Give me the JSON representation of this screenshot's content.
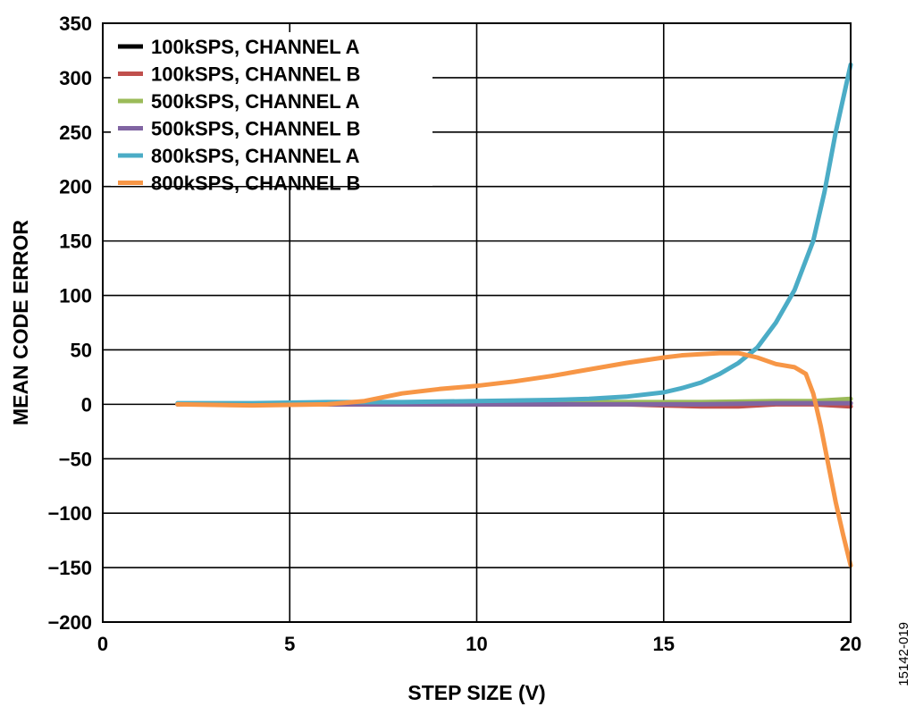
{
  "figure_id": "15142-019",
  "chart_data": {
    "type": "line",
    "title": "",
    "xlabel": "STEP SIZE (V)",
    "ylabel": "MEAN CODE ERROR",
    "xlim": [
      0,
      20
    ],
    "ylim": [
      -200,
      350
    ],
    "x_ticks": [
      0,
      5,
      10,
      15,
      20
    ],
    "x_tick_labels": [
      "0",
      "5",
      "10",
      "15",
      "20"
    ],
    "y_ticks": [
      350,
      300,
      250,
      200,
      150,
      100,
      50,
      0,
      -50,
      -100,
      -150,
      -200
    ],
    "y_tick_labels": [
      "350",
      "300",
      "250",
      "200",
      "150",
      "100",
      "50",
      "0",
      "−50",
      "−100",
      "−150",
      "−200"
    ],
    "grid": true,
    "legend_position": "top-left",
    "series": [
      {
        "name": "100kSPS, CHANNEL A",
        "color": "#000000",
        "points": [
          [
            2,
            0
          ],
          [
            4,
            0
          ],
          [
            6,
            0
          ],
          [
            8,
            0
          ],
          [
            10,
            0
          ],
          [
            12,
            0
          ],
          [
            14,
            1
          ],
          [
            16,
            1
          ],
          [
            18,
            1
          ],
          [
            20,
            1
          ]
        ]
      },
      {
        "name": "100kSPS, CHANNEL B",
        "color": "#c0504d",
        "points": [
          [
            2,
            0
          ],
          [
            4,
            0
          ],
          [
            6,
            0
          ],
          [
            8,
            0
          ],
          [
            10,
            0
          ],
          [
            12,
            0
          ],
          [
            14,
            0
          ],
          [
            15,
            -1
          ],
          [
            16,
            -2
          ],
          [
            17,
            -2
          ],
          [
            18,
            0
          ],
          [
            19,
            0
          ],
          [
            20,
            -2
          ]
        ]
      },
      {
        "name": "500kSPS, CHANNEL A",
        "color": "#9bbb59",
        "points": [
          [
            2,
            0
          ],
          [
            4,
            0
          ],
          [
            6,
            1
          ],
          [
            8,
            1
          ],
          [
            10,
            1
          ],
          [
            12,
            2
          ],
          [
            14,
            2
          ],
          [
            16,
            2
          ],
          [
            18,
            3
          ],
          [
            19,
            3
          ],
          [
            20,
            5
          ]
        ]
      },
      {
        "name": "500kSPS, CHANNEL B",
        "color": "#8064a2",
        "points": [
          [
            2,
            0
          ],
          [
            4,
            0
          ],
          [
            6,
            0
          ],
          [
            8,
            0
          ],
          [
            10,
            0
          ],
          [
            12,
            0
          ],
          [
            14,
            0
          ],
          [
            16,
            0
          ],
          [
            18,
            1
          ],
          [
            20,
            1
          ]
        ]
      },
      {
        "name": "800kSPS, CHANNEL A",
        "color": "#4bacc6",
        "points": [
          [
            2,
            1
          ],
          [
            4,
            1
          ],
          [
            6,
            2
          ],
          [
            8,
            2
          ],
          [
            10,
            3
          ],
          [
            12,
            4
          ],
          [
            13,
            5
          ],
          [
            14,
            7
          ],
          [
            15,
            11
          ],
          [
            15.5,
            15
          ],
          [
            16,
            20
          ],
          [
            16.5,
            28
          ],
          [
            17,
            38
          ],
          [
            17.5,
            52
          ],
          [
            18,
            75
          ],
          [
            18.5,
            105
          ],
          [
            19,
            150
          ],
          [
            19.3,
            195
          ],
          [
            19.6,
            250
          ],
          [
            20,
            312
          ]
        ]
      },
      {
        "name": "800kSPS, CHANNEL B",
        "color": "#f79646",
        "points": [
          [
            2,
            0
          ],
          [
            4,
            -1
          ],
          [
            6,
            0
          ],
          [
            7,
            3
          ],
          [
            8,
            10
          ],
          [
            9,
            14
          ],
          [
            10,
            17
          ],
          [
            11,
            21
          ],
          [
            12,
            26
          ],
          [
            13,
            32
          ],
          [
            14,
            38
          ],
          [
            15,
            43
          ],
          [
            15.5,
            45
          ],
          [
            16,
            46
          ],
          [
            16.5,
            47
          ],
          [
            17,
            47
          ],
          [
            17.5,
            43
          ],
          [
            18,
            37
          ],
          [
            18.5,
            34
          ],
          [
            18.8,
            28
          ],
          [
            19,
            10
          ],
          [
            19.2,
            -20
          ],
          [
            19.4,
            -55
          ],
          [
            19.6,
            -90
          ],
          [
            19.8,
            -120
          ],
          [
            20,
            -148
          ]
        ]
      }
    ]
  }
}
